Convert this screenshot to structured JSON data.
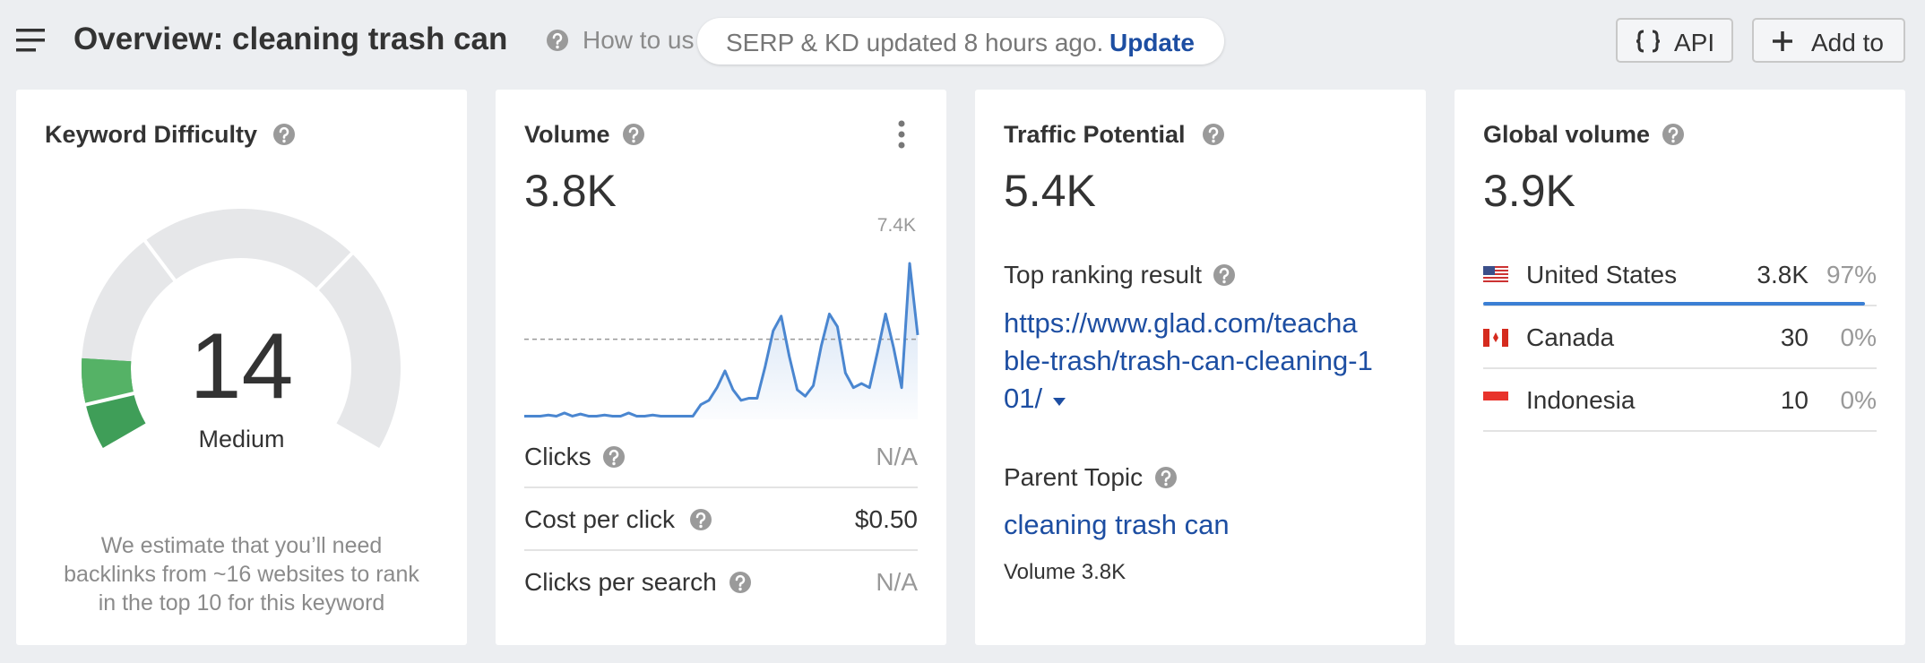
{
  "header": {
    "title": "Overview: cleaning trash can",
    "help_link": "How to us",
    "status": "SERP & KD updated 8 hours ago.",
    "update_link": "Update",
    "buttons": [
      "API",
      "Add to"
    ]
  },
  "keyword_difficulty": {
    "title": "Keyword Difficulty",
    "score": 14,
    "scale": [
      0,
      100
    ],
    "label": "Medium",
    "description": [
      "We estimate that you’ll need",
      "backlinks from ~16 websites to rank",
      "in the top 10 for this keyword"
    ]
  },
  "volume": {
    "title": "Volume",
    "value": "3.8K",
    "chart": {
      "type": "line",
      "ylim": [
        0,
        7400
      ],
      "max_label": {
        "value": 7400,
        "label": "7.4K"
      },
      "reference": 3800,
      "values": [
        150,
        150,
        150,
        200,
        150,
        300,
        150,
        250,
        150,
        150,
        200,
        150,
        150,
        300,
        150,
        150,
        200,
        150,
        150,
        150,
        150,
        150,
        700,
        900,
        1500,
        2300,
        1400,
        900,
        1000,
        1000,
        2500,
        4200,
        4900,
        3000,
        1400,
        1100,
        1600,
        3500,
        5000,
        4400,
        2200,
        1500,
        1700,
        1500,
        3200,
        5000,
        3400,
        1500,
        7400,
        4000
      ]
    },
    "metrics": [
      {
        "label": "Clicks",
        "value": "N/A"
      },
      {
        "label": "Cost per click",
        "value": "$0.50"
      },
      {
        "label": "Clicks per search",
        "value": "N/A"
      }
    ]
  },
  "traffic_potential": {
    "title": "Traffic Potential",
    "value": "5.4K",
    "top_ranking_label": "Top ranking result",
    "url_lines": [
      "https://www.glad.com/teacha",
      "ble-trash/trash-can-cleaning-1",
      "01/"
    ],
    "parent_topic_label": "Parent Topic",
    "parent_topic": "cleaning trash can",
    "parent_volume": "Volume 3.8K"
  },
  "global_volume": {
    "title": "Global volume",
    "value": "3.9K",
    "countries": [
      {
        "name": "United States",
        "volume": "3.8K",
        "share": {
          "value": 97,
          "label": "97%"
        }
      },
      {
        "name": "Canada",
        "volume": "30",
        "share": {
          "value": 0,
          "label": "0%"
        }
      },
      {
        "name": "Indonesia",
        "volume": "10",
        "share": {
          "value": 0,
          "label": "0%"
        }
      }
    ]
  }
}
